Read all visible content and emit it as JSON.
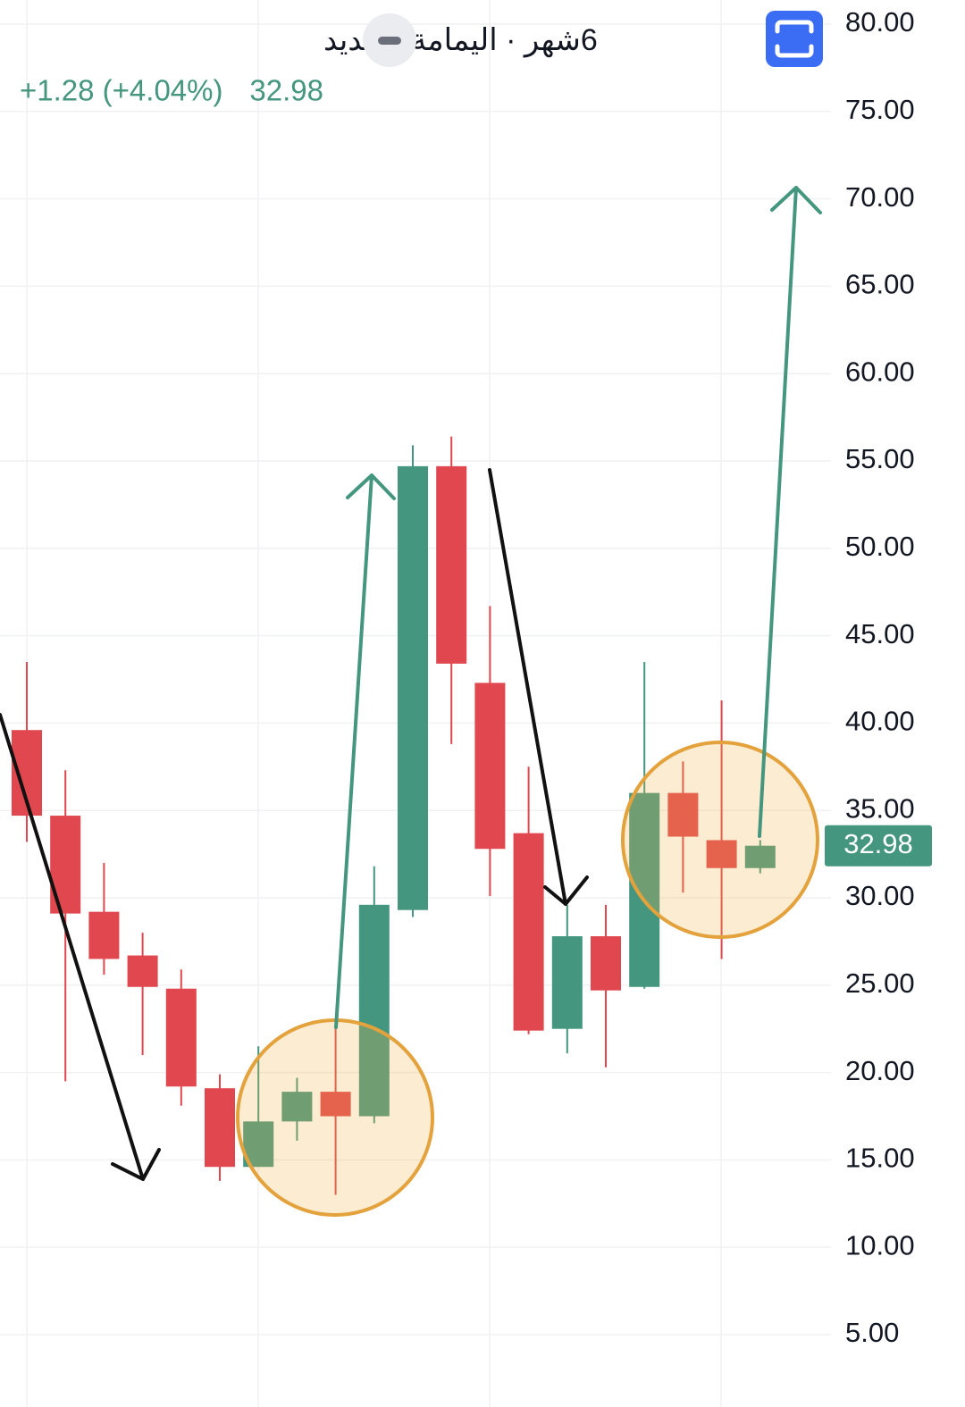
{
  "chart_data": {
    "type": "candlestick",
    "title": "6شهر · اليمامة للحديد",
    "change": "+1.28 (+4.04%)",
    "last_price": 32.98,
    "up_color": "#45967f",
    "down_color": "#e0474e",
    "open": [
      39.6,
      34.7,
      29.2,
      26.7,
      24.8,
      19.1,
      14.6,
      17.2,
      18.9,
      17.5,
      29.3,
      54.7,
      42.3,
      33.7,
      22.5,
      27.8,
      24.9,
      36.0,
      33.3,
      31.7
    ],
    "high": [
      43.5,
      37.3,
      32.0,
      28.0,
      25.9,
      19.9,
      21.5,
      19.7,
      22.6,
      31.8,
      55.9,
      56.4,
      46.7,
      37.5,
      29.6,
      29.6,
      43.5,
      37.8,
      41.3,
      33.3
    ],
    "low": [
      33.2,
      19.5,
      25.6,
      21.0,
      18.1,
      13.8,
      14.6,
      16.1,
      13.0,
      17.1,
      28.9,
      38.8,
      30.1,
      22.2,
      21.1,
      20.3,
      24.8,
      30.3,
      26.5,
      31.4
    ],
    "close": [
      34.7,
      29.1,
      26.5,
      24.9,
      19.2,
      14.6,
      17.2,
      18.9,
      17.5,
      29.6,
      54.7,
      43.4,
      32.8,
      22.4,
      27.8,
      24.7,
      36.0,
      33.5,
      31.7,
      32.98
    ],
    "ylim": [
      0,
      80
    ],
    "yticks": [
      {
        "value": 5,
        "label": "5.00"
      },
      {
        "value": 10,
        "label": "10.00"
      },
      {
        "value": 15,
        "label": "15.00"
      },
      {
        "value": 20,
        "label": "20.00"
      },
      {
        "value": 25,
        "label": "25.00"
      },
      {
        "value": 30,
        "label": "30.00"
      },
      {
        "value": 35,
        "label": "35.00"
      },
      {
        "value": 40,
        "label": "40.00"
      },
      {
        "value": 45,
        "label": "45.00"
      },
      {
        "value": 50,
        "label": "50.00"
      },
      {
        "value": 55,
        "label": "55.00"
      },
      {
        "value": 60,
        "label": "60.00"
      },
      {
        "value": 65,
        "label": "65.00"
      },
      {
        "value": 70,
        "label": "70.00"
      },
      {
        "value": 75,
        "label": "75.00"
      },
      {
        "value": 80,
        "label": "80.00"
      }
    ],
    "grid": true
  }
}
